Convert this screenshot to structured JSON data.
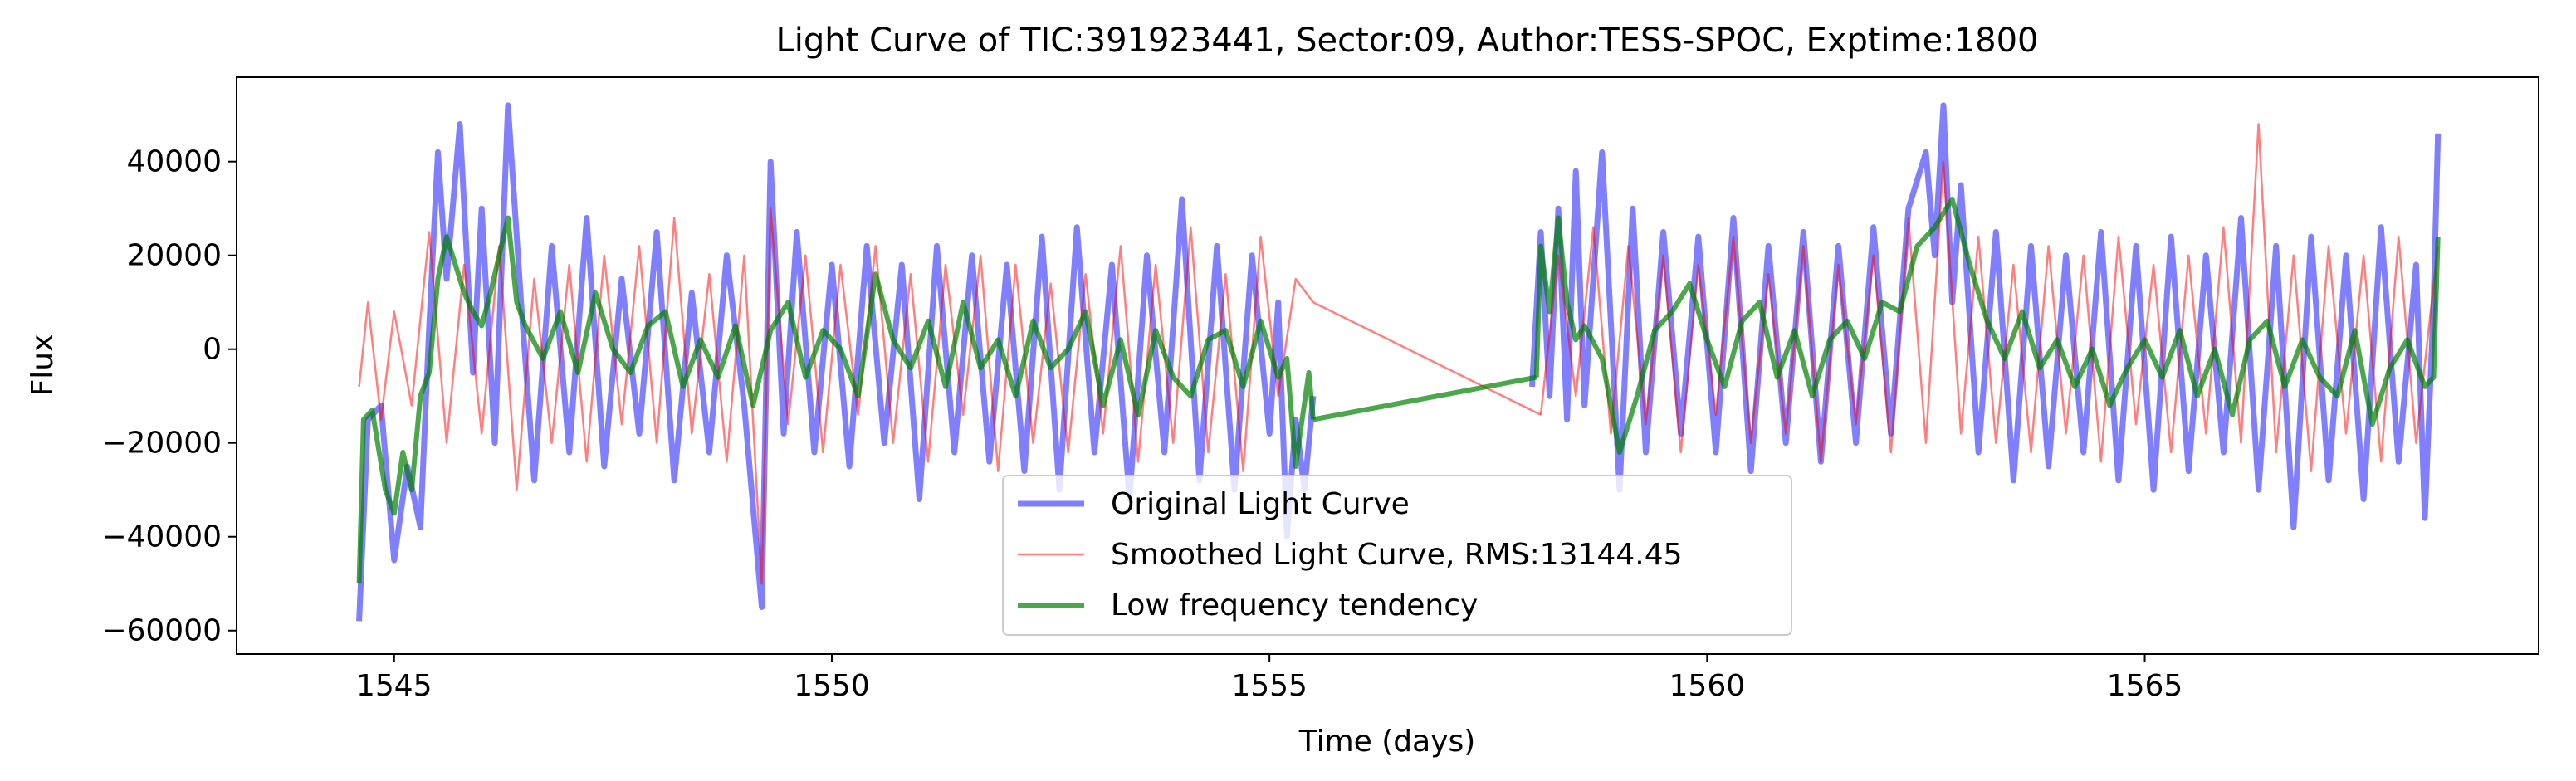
{
  "chart_data": {
    "type": "line",
    "title": "Light Curve of TIC:391923441, Sector:09, Author:TESS-SPOC, Exptime:1800",
    "xlabel": "Time (days)",
    "ylabel": "Flux",
    "xlim": [
      1543.2,
      1569.5
    ],
    "ylim": [
      -65000,
      58000
    ],
    "xticks": [
      1545,
      1550,
      1555,
      1560,
      1565
    ],
    "yticks": [
      -60000,
      -40000,
      -20000,
      0,
      20000,
      40000
    ],
    "grid": false,
    "legend_position": "lower-center",
    "series": [
      {
        "name": "Original Light Curve",
        "color": "#0000ff",
        "segments": [
          {
            "x": [
              1544.6,
              1544.7,
              1544.85,
              1545.0,
              1545.15,
              1545.3,
              1545.4,
              1545.5,
              1545.6,
              1545.75,
              1545.9,
              1546.0,
              1546.15,
              1546.3,
              1546.45,
              1546.6,
              1546.8,
              1547.0,
              1547.2,
              1547.4,
              1547.6,
              1547.8,
              1548.0,
              1548.2,
              1548.4,
              1548.6,
              1548.8,
              1549.0,
              1549.2,
              1549.3,
              1549.45,
              1549.6,
              1549.8,
              1550.0,
              1550.2,
              1550.4,
              1550.6,
              1550.8,
              1551.0,
              1551.2,
              1551.4,
              1551.6,
              1551.8,
              1552.0,
              1552.2,
              1552.4,
              1552.6,
              1552.8,
              1553.0,
              1553.2,
              1553.4,
              1553.6,
              1553.8,
              1554.0,
              1554.2,
              1554.4,
              1554.6,
              1554.8,
              1555.0,
              1555.1,
              1555.2,
              1555.3,
              1555.4,
              1555.5
            ],
            "y": [
              -58000,
              -15000,
              -12000,
              -45000,
              -25000,
              -38000,
              5000,
              42000,
              15000,
              48000,
              -5000,
              30000,
              -20000,
              52000,
              10000,
              -28000,
              22000,
              -22000,
              28000,
              -25000,
              15000,
              -18000,
              25000,
              -28000,
              12000,
              -22000,
              20000,
              -12000,
              -55000,
              40000,
              -18000,
              25000,
              -22000,
              18000,
              -25000,
              22000,
              -20000,
              18000,
              -32000,
              22000,
              -22000,
              20000,
              -24000,
              18000,
              -26000,
              24000,
              -30000,
              26000,
              -22000,
              18000,
              -32000,
              20000,
              -22000,
              32000,
              -28000,
              22000,
              -30000,
              20000,
              -18000,
              10000,
              -40000,
              -15000,
              -30000,
              -10000
            ]
          },
          {
            "x": [
              1558.0,
              1558.1,
              1558.2,
              1558.3,
              1558.4,
              1558.5,
              1558.6,
              1558.8,
              1559.0,
              1559.15,
              1559.3,
              1559.5,
              1559.7,
              1559.9,
              1560.1,
              1560.3,
              1560.5,
              1560.7,
              1560.9,
              1561.1,
              1561.3,
              1561.5,
              1561.7,
              1561.9,
              1562.1,
              1562.3,
              1562.5,
              1562.6,
              1562.7,
              1562.8,
              1562.9,
              1563.1,
              1563.3,
              1563.5,
              1563.7,
              1563.9,
              1564.1,
              1564.3,
              1564.5,
              1564.7,
              1564.9,
              1565.1,
              1565.3,
              1565.5,
              1565.7,
              1565.9,
              1566.1,
              1566.3,
              1566.5,
              1566.7,
              1566.9,
              1567.1,
              1567.3,
              1567.5,
              1567.7,
              1567.9,
              1568.1,
              1568.2,
              1568.3,
              1568.35
            ],
            "y": [
              -8000,
              25000,
              -10000,
              30000,
              -15000,
              38000,
              -12000,
              42000,
              -30000,
              30000,
              -22000,
              25000,
              -18000,
              24000,
              -22000,
              28000,
              -26000,
              22000,
              -20000,
              25000,
              -24000,
              22000,
              -20000,
              26000,
              -18000,
              30000,
              42000,
              20000,
              52000,
              10000,
              35000,
              -22000,
              25000,
              -28000,
              22000,
              -25000,
              20000,
              -22000,
              25000,
              -28000,
              22000,
              -30000,
              24000,
              -26000,
              20000,
              -22000,
              28000,
              -30000,
              22000,
              -38000,
              24000,
              -28000,
              20000,
              -32000,
              26000,
              -24000,
              18000,
              -36000,
              10000,
              46000
            ]
          }
        ]
      },
      {
        "name": "Smoothed Light Curve, RMS:13144.45",
        "color": "#ff0000",
        "segments": [
          {
            "x": [
              1544.6,
              1544.7,
              1544.85,
              1545.0,
              1545.2,
              1545.4,
              1545.6,
              1545.8,
              1546.0,
              1546.2,
              1546.4,
              1546.6,
              1546.8,
              1547.0,
              1547.2,
              1547.4,
              1547.6,
              1547.8,
              1548.0,
              1548.2,
              1548.4,
              1548.6,
              1548.8,
              1549.0,
              1549.2,
              1549.3,
              1549.5,
              1549.7,
              1549.9,
              1550.1,
              1550.3,
              1550.5,
              1550.7,
              1550.9,
              1551.1,
              1551.3,
              1551.5,
              1551.7,
              1551.9,
              1552.1,
              1552.3,
              1552.5,
              1552.7,
              1552.9,
              1553.1,
              1553.3,
              1553.5,
              1553.7,
              1553.9,
              1554.1,
              1554.3,
              1554.5,
              1554.7,
              1554.9,
              1555.1,
              1555.3,
              1555.5
            ],
            "y": [
              -8000,
              10000,
              -15000,
              8000,
              -12000,
              25000,
              -20000,
              18000,
              -18000,
              22000,
              -30000,
              15000,
              -20000,
              18000,
              -24000,
              20000,
              -16000,
              22000,
              -20000,
              28000,
              -18000,
              16000,
              -24000,
              20000,
              -50000,
              30000,
              -16000,
              20000,
              -22000,
              18000,
              -14000,
              22000,
              -20000,
              16000,
              -24000,
              18000,
              -14000,
              20000,
              -26000,
              18000,
              -20000,
              14000,
              -22000,
              16000,
              -18000,
              22000,
              -24000,
              18000,
              -20000,
              26000,
              -22000,
              16000,
              -26000,
              24000,
              -10000,
              15000,
              10000
            ]
          },
          {
            "x": [
              1555.5,
              1558.1
            ],
            "y": [
              10000,
              -14000
            ]
          },
          {
            "x": [
              1558.1,
              1558.3,
              1558.5,
              1558.7,
              1558.9,
              1559.1,
              1559.3,
              1559.5,
              1559.7,
              1559.9,
              1560.1,
              1560.3,
              1560.5,
              1560.7,
              1560.9,
              1561.1,
              1561.3,
              1561.5,
              1561.7,
              1561.9,
              1562.1,
              1562.3,
              1562.5,
              1562.7,
              1562.9,
              1563.1,
              1563.3,
              1563.5,
              1563.7,
              1563.9,
              1564.1,
              1564.3,
              1564.5,
              1564.7,
              1564.9,
              1565.1,
              1565.3,
              1565.5,
              1565.7,
              1565.9,
              1566.1,
              1566.3,
              1566.5,
              1566.7,
              1566.9,
              1567.1,
              1567.3,
              1567.5,
              1567.7,
              1567.9,
              1568.1,
              1568.35
            ],
            "y": [
              -14000,
              20000,
              -10000,
              26000,
              -18000,
              22000,
              -16000,
              20000,
              -22000,
              18000,
              -14000,
              24000,
              -20000,
              16000,
              -18000,
              22000,
              -24000,
              18000,
              -16000,
              20000,
              -22000,
              28000,
              -20000,
              40000,
              -18000,
              24000,
              -20000,
              18000,
              -22000,
              22000,
              -18000,
              20000,
              -24000,
              24000,
              -16000,
              18000,
              -22000,
              20000,
              -18000,
              26000,
              -20000,
              48000,
              -22000,
              20000,
              -26000,
              22000,
              -18000,
              20000,
              -24000,
              24000,
              -20000,
              22000
            ]
          }
        ]
      },
      {
        "name": "Low frequency tendency",
        "color": "#008000",
        "segments": [
          {
            "x": [
              1544.6,
              1544.65,
              1544.75,
              1544.9,
              1545.0,
              1545.1,
              1545.2,
              1545.3,
              1545.4,
              1545.5,
              1545.6,
              1545.7,
              1545.8,
              1545.9,
              1546.0,
              1546.1,
              1546.2,
              1546.3,
              1546.4,
              1546.5,
              1546.7,
              1546.9,
              1547.1,
              1547.3,
              1547.5,
              1547.7,
              1547.9,
              1548.1,
              1548.3,
              1548.5,
              1548.7,
              1548.9,
              1549.1,
              1549.3,
              1549.5,
              1549.7,
              1549.9,
              1550.1,
              1550.3,
              1550.5,
              1550.7,
              1550.9,
              1551.1,
              1551.3,
              1551.5,
              1551.7,
              1551.9,
              1552.1,
              1552.3,
              1552.5,
              1552.7,
              1552.9,
              1553.1,
              1553.3,
              1553.5,
              1553.7,
              1553.9,
              1554.1,
              1554.3,
              1554.5,
              1554.7,
              1554.9,
              1555.1,
              1555.2,
              1555.3,
              1555.35,
              1555.45,
              1555.5
            ],
            "y": [
              -50000,
              -15000,
              -13000,
              -30000,
              -35000,
              -22000,
              -30000,
              -10000,
              -5000,
              15000,
              24000,
              18000,
              12000,
              8000,
              5000,
              12000,
              20000,
              28000,
              10000,
              5000,
              -2000,
              8000,
              -5000,
              12000,
              0,
              -5000,
              5000,
              8000,
              -8000,
              2000,
              -6000,
              5000,
              -12000,
              4000,
              10000,
              -6000,
              4000,
              0,
              -10000,
              16000,
              2000,
              -4000,
              6000,
              -8000,
              10000,
              -4000,
              2000,
              -10000,
              6000,
              -4000,
              0,
              8000,
              -12000,
              2000,
              -14000,
              4000,
              -6000,
              -10000,
              2000,
              4000,
              -8000,
              6000,
              -6000,
              -2000,
              -25000,
              -18000,
              -5000,
              -15000
            ]
          },
          {
            "x": [
              1555.5,
              1558.05
            ],
            "y": [
              -15000,
              -6000
            ]
          },
          {
            "x": [
              1558.05,
              1558.1,
              1558.2,
              1558.3,
              1558.4,
              1558.5,
              1558.6,
              1558.8,
              1559.0,
              1559.2,
              1559.4,
              1559.6,
              1559.8,
              1560.0,
              1560.2,
              1560.4,
              1560.6,
              1560.8,
              1561.0,
              1561.2,
              1561.4,
              1561.6,
              1561.8,
              1562.0,
              1562.2,
              1562.4,
              1562.6,
              1562.8,
              1563.0,
              1563.2,
              1563.4,
              1563.6,
              1563.8,
              1564.0,
              1564.2,
              1564.4,
              1564.6,
              1564.8,
              1565.0,
              1565.2,
              1565.4,
              1565.6,
              1565.8,
              1566.0,
              1566.2,
              1566.4,
              1566.6,
              1566.8,
              1567.0,
              1567.2,
              1567.4,
              1567.6,
              1567.8,
              1568.0,
              1568.2,
              1568.3,
              1568.35
            ],
            "y": [
              -6000,
              22000,
              8000,
              28000,
              10000,
              2000,
              5000,
              -2000,
              -22000,
              -10000,
              4000,
              8000,
              14000,
              2000,
              -8000,
              6000,
              10000,
              -6000,
              4000,
              -10000,
              2000,
              6000,
              -2000,
              10000,
              8000,
              22000,
              26000,
              32000,
              18000,
              6000,
              -2000,
              8000,
              -4000,
              2000,
              -8000,
              0,
              -12000,
              -4000,
              2000,
              -6000,
              4000,
              -10000,
              0,
              -14000,
              2000,
              6000,
              -8000,
              2000,
              -6000,
              -10000,
              4000,
              -16000,
              -4000,
              2000,
              -8000,
              -6000,
              24000
            ]
          }
        ]
      }
    ]
  }
}
